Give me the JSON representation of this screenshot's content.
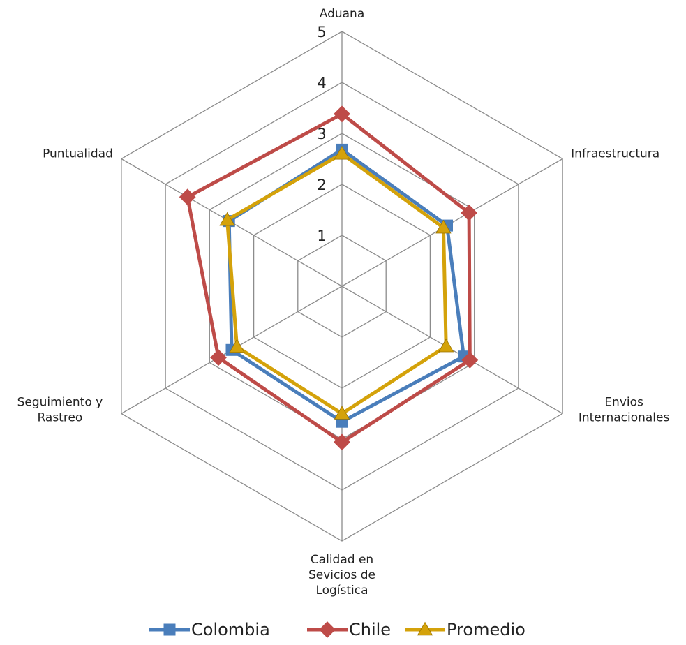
{
  "chart_data": {
    "type": "radar",
    "categories": [
      "Aduana",
      "Infraestructura",
      "Envios Internacionales",
      "Calidad en Sevicios de Logística",
      "Seguimiento y Rastreo",
      "Puntualidad"
    ],
    "category_lines": [
      [
        "Aduana"
      ],
      [
        "Infraestructura"
      ],
      [
        "Envios",
        "Internacionales"
      ],
      [
        "Calidad en",
        "Sevicios de",
        "Logística"
      ],
      [
        "Seguimiento y",
        "Rastreo"
      ],
      [
        "Puntualidad"
      ]
    ],
    "rlim": [
      0,
      5
    ],
    "ticks": [
      1,
      2,
      3,
      4,
      5
    ],
    "tick_labels": [
      "1",
      "2",
      "3",
      "4",
      "5"
    ],
    "grid": true,
    "legend_position": "bottom",
    "series": [
      {
        "name": "Colombia",
        "color": "#4A7EBB",
        "marker": "square",
        "values": [
          2.68,
          2.38,
          2.76,
          2.66,
          2.5,
          2.56
        ]
      },
      {
        "name": "Chile",
        "color": "#BE4B48",
        "marker": "diamond",
        "values": [
          3.38,
          2.88,
          2.9,
          3.06,
          2.8,
          3.5
        ]
      },
      {
        "name": "Promedio",
        "color": "#D4A20A",
        "marker": "triangle",
        "values": [
          2.6,
          2.3,
          2.36,
          2.5,
          2.38,
          2.6
        ]
      }
    ]
  }
}
